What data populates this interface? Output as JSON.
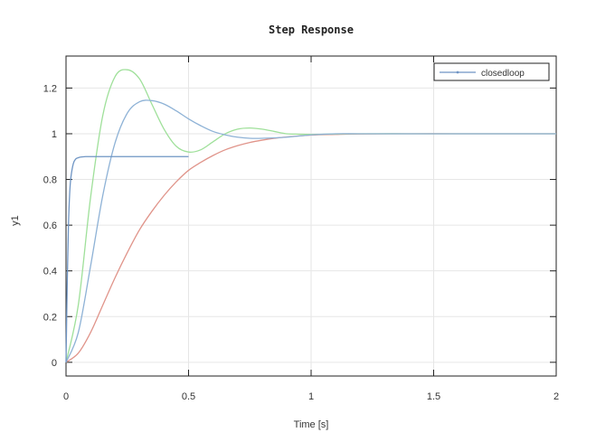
{
  "chart_data": {
    "type": "line",
    "title": "Step Response",
    "xlabel": "Time [s]",
    "ylabel": "y1",
    "xlim": [
      0,
      2
    ],
    "ylim": [
      -0.06,
      1.34
    ],
    "xticks": [
      0,
      0.5,
      1,
      1.5,
      2
    ],
    "xtick_labels": [
      "0",
      "0.5",
      "1",
      "1.5",
      "2"
    ],
    "yticks": [
      0,
      0.2,
      0.4,
      0.6,
      0.8,
      1,
      1.2
    ],
    "ytick_labels": [
      "0",
      "0.2",
      "0.4",
      "0.6",
      "0.8",
      "1",
      "1.2"
    ],
    "grid": true,
    "legend": {
      "position": "top-right",
      "entries": [
        "closedloop"
      ]
    },
    "series": [
      {
        "name": "closedloop",
        "color": "#6f95c4",
        "x": [
          0,
          0.005,
          0.01,
          0.015,
          0.02,
          0.03,
          0.04,
          0.05,
          0.06,
          0.08,
          0.1,
          0.2,
          0.3,
          0.4,
          0.5
        ],
        "y": [
          0,
          0.35,
          0.6,
          0.74,
          0.81,
          0.87,
          0.89,
          0.895,
          0.898,
          0.9,
          0.9,
          0.9,
          0.9,
          0.9,
          0.9
        ]
      },
      {
        "color": "#8eb2d6",
        "x": [
          0,
          0.05,
          0.1,
          0.15,
          0.2,
          0.25,
          0.3,
          0.35,
          0.4,
          0.45,
          0.5,
          0.55,
          0.6,
          0.65,
          0.7,
          0.75,
          0.8,
          0.9,
          1.0,
          1.1,
          1.2,
          1.4,
          1.6,
          1.8,
          2.0
        ],
        "y": [
          0,
          0.13,
          0.42,
          0.73,
          0.96,
          1.09,
          1.14,
          1.145,
          1.13,
          1.1,
          1.065,
          1.035,
          1.01,
          0.995,
          0.985,
          0.98,
          0.98,
          0.985,
          0.995,
          1.0,
          1.0,
          1.0,
          1.0,
          1.0,
          1.0
        ]
      },
      {
        "color": "#9fe09a",
        "x": [
          0,
          0.05,
          0.1,
          0.15,
          0.2,
          0.25,
          0.3,
          0.35,
          0.4,
          0.45,
          0.5,
          0.55,
          0.6,
          0.65,
          0.7,
          0.75,
          0.8,
          0.85,
          0.9,
          0.95,
          1.0,
          1.1,
          1.2,
          1.4,
          1.6,
          1.8,
          2.0
        ],
        "y": [
          0,
          0.25,
          0.72,
          1.08,
          1.25,
          1.28,
          1.24,
          1.13,
          1.02,
          0.945,
          0.92,
          0.93,
          0.965,
          1.0,
          1.02,
          1.025,
          1.02,
          1.01,
          1.0,
          0.998,
          0.997,
          0.999,
          1.0,
          1.0,
          1.0,
          1.0,
          1.0
        ]
      },
      {
        "color": "#e0948a",
        "x": [
          0,
          0.05,
          0.1,
          0.15,
          0.2,
          0.25,
          0.3,
          0.35,
          0.4,
          0.45,
          0.5,
          0.55,
          0.6,
          0.65,
          0.7,
          0.75,
          0.8,
          0.85,
          0.9,
          1.0,
          1.1,
          1.2,
          1.4,
          1.6,
          1.8,
          2.0
        ],
        "y": [
          0,
          0.04,
          0.13,
          0.25,
          0.37,
          0.48,
          0.58,
          0.66,
          0.73,
          0.79,
          0.84,
          0.875,
          0.905,
          0.93,
          0.948,
          0.962,
          0.972,
          0.98,
          0.986,
          0.994,
          0.997,
          0.999,
          1.0,
          1.0,
          1.0,
          1.0
        ]
      }
    ]
  }
}
